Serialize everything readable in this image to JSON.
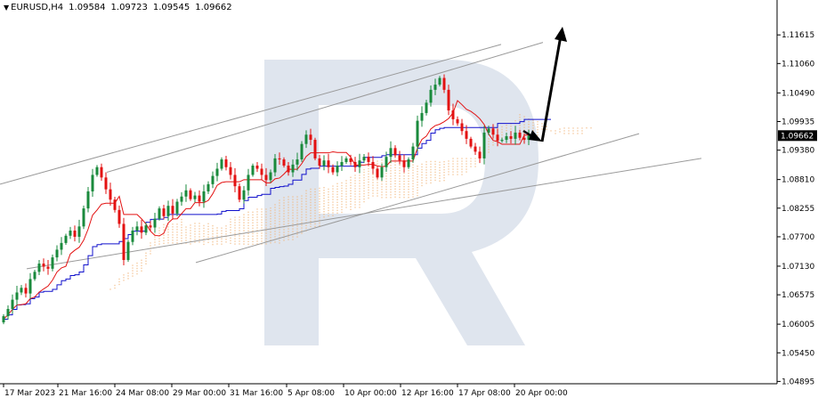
{
  "header": {
    "symbol": "EURUSD,H4",
    "open": "1.09584",
    "high": "1.09723",
    "low": "1.09545",
    "close": "1.09662"
  },
  "colors": {
    "bull": "#1a8a3c",
    "bear": "#e31212",
    "tenkan": "#e31212",
    "kijun": "#1010cc",
    "cloud": "#f2b57a",
    "channel": "#9a9a9a",
    "arrow": "#000000",
    "watermark": "#dfe5ee",
    "price_box": "#000000"
  },
  "chart_data": {
    "type": "candlestick",
    "ylim": [
      1.0485,
      1.1205
    ],
    "yticks": [
      "1.11615",
      "1.11060",
      "1.10490",
      "1.09935",
      "1.09380",
      "1.08810",
      "1.08255",
      "1.07700",
      "1.07130",
      "1.06575",
      "1.06005",
      "1.05450",
      "1.04895"
    ],
    "xticks": [
      "17 Mar 2023",
      "21 Mar 16:00",
      "24 Mar 08:00",
      "29 Mar 00:00",
      "31 Mar 16:00",
      "5 Apr 08:00",
      "10 Apr 00:00",
      "12 Apr 16:00",
      "17 Apr 08:00",
      "20 Apr 00:00"
    ],
    "current_price": "1.09662",
    "closes": [
      1.0616,
      1.063,
      1.0648,
      1.0662,
      1.0671,
      1.066,
      1.0688,
      1.0702,
      1.0718,
      1.0712,
      1.0708,
      1.073,
      1.0745,
      1.0758,
      1.0772,
      1.0782,
      1.077,
      1.079,
      1.0825,
      1.0858,
      1.089,
      1.0905,
      1.0885,
      1.0862,
      1.0842,
      1.0822,
      1.0795,
      1.0725,
      1.076,
      1.0782,
      1.079,
      1.0778,
      1.0792,
      1.0788,
      1.0805,
      1.0825,
      1.081,
      1.083,
      1.0815,
      1.0838,
      1.0848,
      1.086,
      1.0843,
      1.085,
      1.0838,
      1.0858,
      1.0872,
      1.0888,
      1.0902,
      1.092,
      1.0905,
      1.089,
      1.0868,
      1.0842,
      1.086,
      1.089,
      1.0908,
      1.0902,
      1.089,
      1.088,
      1.0895,
      1.0922,
      1.092,
      1.0908,
      1.0895,
      1.091,
      1.092,
      1.095,
      1.0968,
      1.0958,
      1.0922,
      1.0908,
      1.0918,
      1.0905,
      1.0895,
      1.0908,
      1.0915,
      1.0922,
      1.0915,
      1.0905,
      1.0918,
      1.0925,
      1.0915,
      1.0902,
      1.0885,
      1.0905,
      1.0925,
      1.0942,
      1.0928,
      1.0918,
      1.0905,
      1.092,
      1.0945,
      1.0995,
      1.101,
      1.103,
      1.1055,
      1.1065,
      1.1078,
      1.1055,
      1.1015,
      1.0998,
      1.099,
      1.0975,
      1.096,
      1.0945,
      1.0935,
      1.0922,
      1.0972,
      1.098,
      1.0968,
      1.0956,
      1.0958,
      1.0965,
      1.096,
      1.0972,
      1.0962,
      1.0958,
      1.0966
    ],
    "channel_upper": [
      [
        1.0872,
        1.1143
      ],
      [
        1.0895,
        1.1147
      ]
    ],
    "channel_lower": [
      [
        1.0708,
        1.0922
      ],
      [
        1.072,
        1.097
      ]
    ],
    "inner_upper_line": [
      1.0875,
      1.0995
    ],
    "inner_lower_line": [
      1.0755,
      1.0925
    ],
    "kijun_levels": [
      1.0637,
      1.0652,
      1.071,
      1.0758,
      1.0815,
      1.0868,
      1.0915,
      1.0952
    ]
  }
}
